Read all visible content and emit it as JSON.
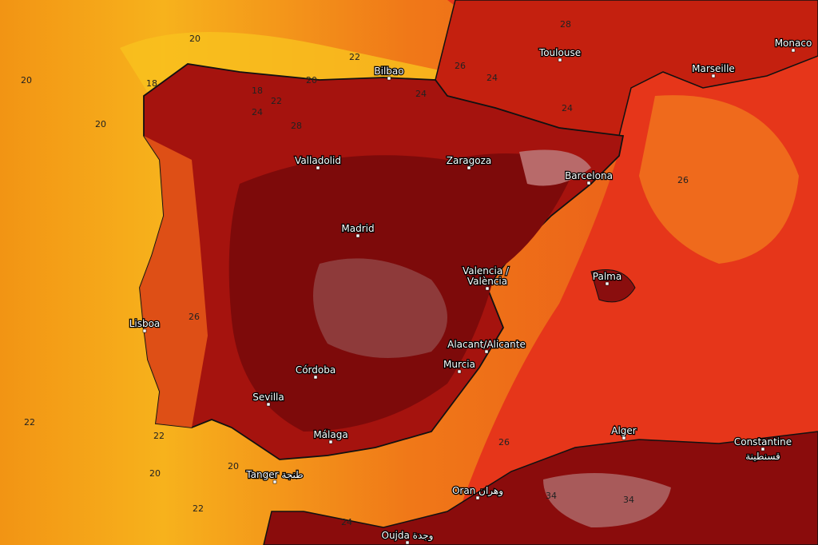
{
  "cities": [
    "Toulouse",
    "Monaco",
    "Marseille",
    "Bilbao",
    "Valladolid",
    "Zaragoza",
    "Barcelona",
    "Madrid",
    "Valencia /",
    "València",
    "Palma",
    "Lisboa",
    "Alacant/Alicante",
    "Murcia",
    "Córdoba",
    "Sevilla",
    "Málaga",
    "Alger",
    "Constantine",
    "قسنطينة",
    "Tanger طنجة",
    "Oran وهران",
    "Oujda وجدة"
  ],
  "isotherm_labels": [
    20,
    22,
    20,
    20,
    18,
    18,
    22,
    20,
    24,
    28,
    24,
    28,
    26,
    26,
    22,
    22,
    20,
    20,
    22,
    24,
    26,
    24,
    24,
    26,
    34,
    34
  ]
}
